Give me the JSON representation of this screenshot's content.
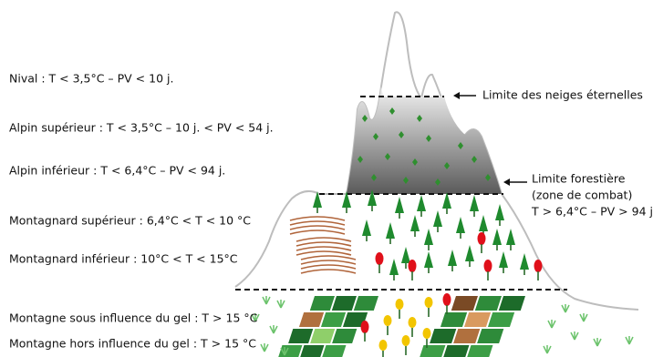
{
  "labels": [
    "Nival : T < 3,5°C – PV < 10 j.",
    "Alpin supérieur : T < 3,5°C – 10 j. < PV < 54 j.",
    "Alpin inférieur : T < 6,4°C – PV < 94 j.",
    "Montagnard supérieur : 6,4°C < T < 10 °C",
    "Montagnard inférieur : 10°C < T < 15°C",
    "Montagne sous influence du gel : T > 15 °C",
    "Montagne hors influence du gel : T > 15 °C"
  ],
  "annotations": {
    "snow_limit": "Limite des neiges éternelles",
    "forest_limit": "Limite forestière",
    "forest_zone": "(zone de combat)",
    "forest_condition": "T > 6,4°C – PV > 94 j."
  }
}
